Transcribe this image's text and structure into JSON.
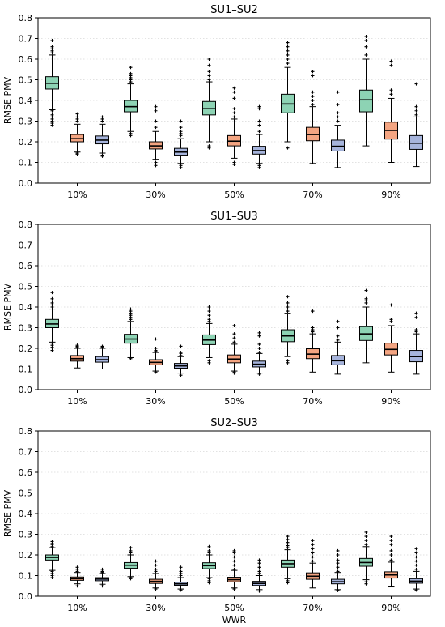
{
  "chart_data": [
    {
      "type": "box",
      "title": "SU1–SU2",
      "xlabel": "",
      "ylabel": "RMSE PMV",
      "ylim": [
        0,
        0.8
      ],
      "yticks": [
        "0.0",
        "0.1",
        "0.2",
        "0.3",
        "0.4",
        "0.5",
        "0.6",
        "0.7",
        "0.8"
      ],
      "categories": [
        "10%",
        "30%",
        "50%",
        "70%",
        "90%"
      ],
      "grid": "horizontal",
      "series_colors": [
        "#8dd3b4",
        "#f4a582",
        "#a6b4dc"
      ],
      "boxes": [
        [
          {
            "whislo": 0.355,
            "q1": 0.455,
            "med": 0.483,
            "q3": 0.515,
            "whishi": 0.62,
            "fliers_lo": [
              0.35,
              0.33,
              0.32,
              0.31,
              0.3,
              0.29,
              0.28
            ],
            "fliers_hi": [
              0.63,
              0.64,
              0.65,
              0.66,
              0.69
            ]
          },
          {
            "whislo": 0.15,
            "q1": 0.2,
            "med": 0.215,
            "q3": 0.235,
            "whishi": 0.285,
            "fliers_lo": [
              0.14,
              0.145
            ],
            "fliers_hi": [
              0.3,
              0.31,
              0.32,
              0.335
            ]
          },
          {
            "whislo": 0.145,
            "q1": 0.19,
            "med": 0.208,
            "q3": 0.228,
            "whishi": 0.285,
            "fliers_lo": [
              0.13,
              0.135
            ],
            "fliers_hi": [
              0.3,
              0.31,
              0.32
            ]
          }
        ],
        [
          {
            "whislo": 0.25,
            "q1": 0.345,
            "med": 0.37,
            "q3": 0.4,
            "whishi": 0.48,
            "fliers_lo": [
              0.24,
              0.23
            ],
            "fliers_hi": [
              0.49,
              0.5,
              0.51,
              0.52,
              0.53,
              0.56
            ]
          },
          {
            "whislo": 0.115,
            "q1": 0.165,
            "med": 0.18,
            "q3": 0.2,
            "whishi": 0.25,
            "fliers_lo": [
              0.085,
              0.1
            ],
            "fliers_hi": [
              0.27,
              0.3,
              0.35,
              0.37
            ]
          },
          {
            "whislo": 0.095,
            "q1": 0.135,
            "med": 0.15,
            "q3": 0.168,
            "whishi": 0.215,
            "fliers_lo": [
              0.075,
              0.085
            ],
            "fliers_hi": [
              0.23,
              0.24,
              0.25,
              0.27,
              0.3
            ]
          }
        ],
        [
          {
            "whislo": 0.2,
            "q1": 0.33,
            "med": 0.36,
            "q3": 0.395,
            "whishi": 0.49,
            "fliers_lo": [
              0.18,
              0.17
            ],
            "fliers_hi": [
              0.5,
              0.52,
              0.54,
              0.57,
              0.6
            ]
          },
          {
            "whislo": 0.12,
            "q1": 0.18,
            "med": 0.203,
            "q3": 0.23,
            "whishi": 0.31,
            "fliers_lo": [
              0.1,
              0.09
            ],
            "fliers_hi": [
              0.32,
              0.34,
              0.36,
              0.41,
              0.44,
              0.46
            ]
          },
          {
            "whislo": 0.095,
            "q1": 0.14,
            "med": 0.157,
            "q3": 0.178,
            "whishi": 0.235,
            "fliers_lo": [
              0.075,
              0.085
            ],
            "fliers_hi": [
              0.25,
              0.28,
              0.3,
              0.36,
              0.37
            ]
          }
        ],
        [
          {
            "whislo": 0.2,
            "q1": 0.34,
            "med": 0.383,
            "q3": 0.43,
            "whishi": 0.56,
            "fliers_lo": [
              0.17
            ],
            "fliers_hi": [
              0.58,
              0.6,
              0.62,
              0.64,
              0.66,
              0.68
            ]
          },
          {
            "whislo": 0.095,
            "q1": 0.205,
            "med": 0.235,
            "q3": 0.27,
            "whishi": 0.37,
            "fliers_lo": [],
            "fliers_hi": [
              0.38,
              0.4,
              0.42,
              0.44,
              0.52,
              0.54
            ]
          },
          {
            "whislo": 0.075,
            "q1": 0.155,
            "med": 0.178,
            "q3": 0.208,
            "whishi": 0.28,
            "fliers_lo": [],
            "fliers_hi": [
              0.3,
              0.32,
              0.34,
              0.38,
              0.44
            ]
          }
        ],
        [
          {
            "whislo": 0.18,
            "q1": 0.345,
            "med": 0.403,
            "q3": 0.45,
            "whishi": 0.6,
            "fliers_lo": [],
            "fliers_hi": [
              0.62,
              0.66,
              0.69,
              0.71
            ]
          },
          {
            "whislo": 0.1,
            "q1": 0.213,
            "med": 0.255,
            "q3": 0.295,
            "whishi": 0.41,
            "fliers_lo": [],
            "fliers_hi": [
              0.43,
              0.45,
              0.57,
              0.59
            ]
          },
          {
            "whislo": 0.08,
            "q1": 0.163,
            "med": 0.193,
            "q3": 0.23,
            "whishi": 0.32,
            "fliers_lo": [],
            "fliers_hi": [
              0.33,
              0.35,
              0.37,
              0.48
            ]
          }
        ]
      ]
    },
    {
      "type": "box",
      "title": "SU1–SU3",
      "xlabel": "",
      "ylabel": "RMSE PMV",
      "ylim": [
        0,
        0.8
      ],
      "yticks": [
        "0.0",
        "0.1",
        "0.2",
        "0.3",
        "0.4",
        "0.5",
        "0.6",
        "0.7",
        "0.8"
      ],
      "categories": [
        "10%",
        "30%",
        "50%",
        "70%",
        "90%"
      ],
      "grid": "horizontal",
      "series_colors": [
        "#8dd3b4",
        "#f4a582",
        "#a6b4dc"
      ],
      "boxes": [
        [
          {
            "whislo": 0.23,
            "q1": 0.3,
            "med": 0.318,
            "q3": 0.34,
            "whishi": 0.39,
            "fliers_lo": [
              0.225,
              0.215,
              0.205,
              0.19
            ],
            "fliers_hi": [
              0.4,
              0.41,
              0.42,
              0.44,
              0.47
            ]
          },
          {
            "whislo": 0.105,
            "q1": 0.138,
            "med": 0.15,
            "q3": 0.165,
            "whishi": 0.2,
            "fliers_lo": [],
            "fliers_hi": [
              0.205,
              0.21,
              0.215
            ]
          },
          {
            "whislo": 0.1,
            "q1": 0.133,
            "med": 0.145,
            "q3": 0.16,
            "whishi": 0.2,
            "fliers_lo": [],
            "fliers_hi": [
              0.205,
              0.21
            ]
          }
        ],
        [
          {
            "whislo": 0.155,
            "q1": 0.225,
            "med": 0.245,
            "q3": 0.268,
            "whishi": 0.33,
            "fliers_lo": [
              0.15
            ],
            "fliers_hi": [
              0.34,
              0.35,
              0.36,
              0.37,
              0.38,
              0.39
            ]
          },
          {
            "whislo": 0.09,
            "q1": 0.12,
            "med": 0.132,
            "q3": 0.145,
            "whishi": 0.18,
            "fliers_lo": [
              0.085
            ],
            "fliers_hi": [
              0.185,
              0.19,
              0.2,
              0.245
            ]
          },
          {
            "whislo": 0.08,
            "q1": 0.104,
            "med": 0.115,
            "q3": 0.127,
            "whishi": 0.16,
            "fliers_lo": [
              0.07
            ],
            "fliers_hi": [
              0.165,
              0.175,
              0.18,
              0.21
            ]
          }
        ],
        [
          {
            "whislo": 0.155,
            "q1": 0.218,
            "med": 0.24,
            "q3": 0.265,
            "whishi": 0.32,
            "fliers_lo": [
              0.14,
              0.13
            ],
            "fliers_hi": [
              0.33,
              0.34,
              0.36,
              0.38,
              0.4
            ]
          },
          {
            "whislo": 0.09,
            "q1": 0.13,
            "med": 0.148,
            "q3": 0.168,
            "whishi": 0.22,
            "fliers_lo": [
              0.085,
              0.08
            ],
            "fliers_hi": [
              0.23,
              0.25,
              0.27,
              0.31
            ]
          },
          {
            "whislo": 0.08,
            "q1": 0.11,
            "med": 0.123,
            "q3": 0.138,
            "whishi": 0.175,
            "fliers_lo": [
              0.075
            ],
            "fliers_hi": [
              0.18,
              0.2,
              0.22,
              0.26,
              0.275
            ]
          }
        ],
        [
          {
            "whislo": 0.16,
            "q1": 0.232,
            "med": 0.26,
            "q3": 0.29,
            "whishi": 0.37,
            "fliers_lo": [
              0.14,
              0.13
            ],
            "fliers_hi": [
              0.38,
              0.4,
              0.42,
              0.45
            ]
          },
          {
            "whislo": 0.085,
            "q1": 0.15,
            "med": 0.172,
            "q3": 0.198,
            "whishi": 0.27,
            "fliers_lo": [],
            "fliers_hi": [
              0.28,
              0.29,
              0.3,
              0.38
            ]
          },
          {
            "whislo": 0.075,
            "q1": 0.12,
            "med": 0.14,
            "q3": 0.165,
            "whishi": 0.23,
            "fliers_lo": [],
            "fliers_hi": [
              0.24,
              0.26,
              0.3,
              0.33
            ]
          }
        ],
        [
          {
            "whislo": 0.13,
            "q1": 0.238,
            "med": 0.27,
            "q3": 0.305,
            "whishi": 0.4,
            "fliers_lo": [],
            "fliers_hi": [
              0.42,
              0.43,
              0.44,
              0.48
            ]
          },
          {
            "whislo": 0.085,
            "q1": 0.168,
            "med": 0.195,
            "q3": 0.225,
            "whishi": 0.31,
            "fliers_lo": [],
            "fliers_hi": [
              0.33,
              0.34,
              0.41
            ]
          },
          {
            "whislo": 0.075,
            "q1": 0.135,
            "med": 0.16,
            "q3": 0.19,
            "whishi": 0.27,
            "fliers_lo": [],
            "fliers_hi": [
              0.28,
              0.29,
              0.35,
              0.37
            ]
          }
        ]
      ]
    },
    {
      "type": "box",
      "title": "SU2–SU3",
      "xlabel": "WWR",
      "ylabel": "RMSE PMV",
      "ylim": [
        0,
        0.8
      ],
      "yticks": [
        "0.0",
        "0.1",
        "0.2",
        "0.3",
        "0.4",
        "0.5",
        "0.6",
        "0.7",
        "0.8"
      ],
      "categories": [
        "10%",
        "30%",
        "50%",
        "70%",
        "90%"
      ],
      "grid": "horizontal",
      "series_colors": [
        "#8dd3b4",
        "#f4a582",
        "#a6b4dc"
      ],
      "boxes": [
        [
          {
            "whislo": 0.125,
            "q1": 0.175,
            "med": 0.188,
            "q3": 0.2,
            "whishi": 0.235,
            "fliers_lo": [
              0.12,
              0.11,
              0.1,
              0.09
            ],
            "fliers_hi": [
              0.24,
              0.25,
              0.255,
              0.265
            ]
          },
          {
            "whislo": 0.06,
            "q1": 0.077,
            "med": 0.085,
            "q3": 0.093,
            "whishi": 0.115,
            "fliers_lo": [
              0.05
            ],
            "fliers_hi": [
              0.12,
              0.13,
              0.14
            ]
          },
          {
            "whislo": 0.058,
            "q1": 0.075,
            "med": 0.083,
            "q3": 0.09,
            "whishi": 0.11,
            "fliers_lo": [
              0.05
            ],
            "fliers_hi": [
              0.115,
              0.12,
              0.13
            ]
          }
        ],
        [
          {
            "whislo": 0.095,
            "q1": 0.135,
            "med": 0.15,
            "q3": 0.163,
            "whishi": 0.2,
            "fliers_lo": [
              0.09,
              0.085
            ],
            "fliers_hi": [
              0.21,
              0.22,
              0.235
            ]
          },
          {
            "whislo": 0.04,
            "q1": 0.062,
            "med": 0.072,
            "q3": 0.082,
            "whishi": 0.11,
            "fliers_lo": [
              0.035
            ],
            "fliers_hi": [
              0.12,
              0.13,
              0.15,
              0.17
            ]
          },
          {
            "whislo": 0.035,
            "q1": 0.053,
            "med": 0.06,
            "q3": 0.068,
            "whishi": 0.09,
            "fliers_lo": [
              0.03
            ],
            "fliers_hi": [
              0.1,
              0.11,
              0.12,
              0.14
            ]
          }
        ],
        [
          {
            "whislo": 0.09,
            "q1": 0.133,
            "med": 0.148,
            "q3": 0.162,
            "whishi": 0.2,
            "fliers_lo": [
              0.085,
              0.075,
              0.065
            ],
            "fliers_hi": [
              0.21,
              0.22,
              0.24
            ]
          },
          {
            "whislo": 0.04,
            "q1": 0.07,
            "med": 0.08,
            "q3": 0.092,
            "whishi": 0.125,
            "fliers_lo": [
              0.035
            ],
            "fliers_hi": [
              0.13,
              0.15,
              0.17,
              0.19,
              0.21,
              0.22
            ]
          },
          {
            "whislo": 0.032,
            "q1": 0.052,
            "med": 0.062,
            "q3": 0.072,
            "whishi": 0.1,
            "fliers_lo": [
              0.025
            ],
            "fliers_hi": [
              0.11,
              0.12,
              0.14,
              0.16,
              0.175
            ]
          }
        ],
        [
          {
            "whislo": 0.085,
            "q1": 0.14,
            "med": 0.157,
            "q3": 0.175,
            "whishi": 0.225,
            "fliers_lo": [
              0.075,
              0.065
            ],
            "fliers_hi": [
              0.235,
              0.245,
              0.26,
              0.275,
              0.29
            ]
          },
          {
            "whislo": 0.04,
            "q1": 0.082,
            "med": 0.097,
            "q3": 0.113,
            "whishi": 0.16,
            "fliers_lo": [],
            "fliers_hi": [
              0.17,
              0.19,
              0.21,
              0.23,
              0.25,
              0.27
            ]
          },
          {
            "whislo": 0.032,
            "q1": 0.06,
            "med": 0.07,
            "q3": 0.082,
            "whishi": 0.115,
            "fliers_lo": [
              0.028
            ],
            "fliers_hi": [
              0.12,
              0.14,
              0.16,
              0.175,
              0.2,
              0.22
            ]
          }
        ],
        [
          {
            "whislo": 0.08,
            "q1": 0.145,
            "med": 0.163,
            "q3": 0.183,
            "whishi": 0.24,
            "fliers_lo": [
              0.07,
              0.06
            ],
            "fliers_hi": [
              0.25,
              0.27,
              0.29,
              0.31
            ]
          },
          {
            "whislo": 0.045,
            "q1": 0.088,
            "med": 0.103,
            "q3": 0.118,
            "whishi": 0.165,
            "fliers_lo": [],
            "fliers_hi": [
              0.175,
              0.2,
              0.22,
              0.25,
              0.27,
              0.29
            ]
          },
          {
            "whislo": 0.035,
            "q1": 0.063,
            "med": 0.073,
            "q3": 0.085,
            "whishi": 0.12,
            "fliers_lo": [
              0.03
            ],
            "fliers_hi": [
              0.13,
              0.15,
              0.17,
              0.19,
              0.21,
              0.23
            ]
          }
        ]
      ]
    }
  ]
}
